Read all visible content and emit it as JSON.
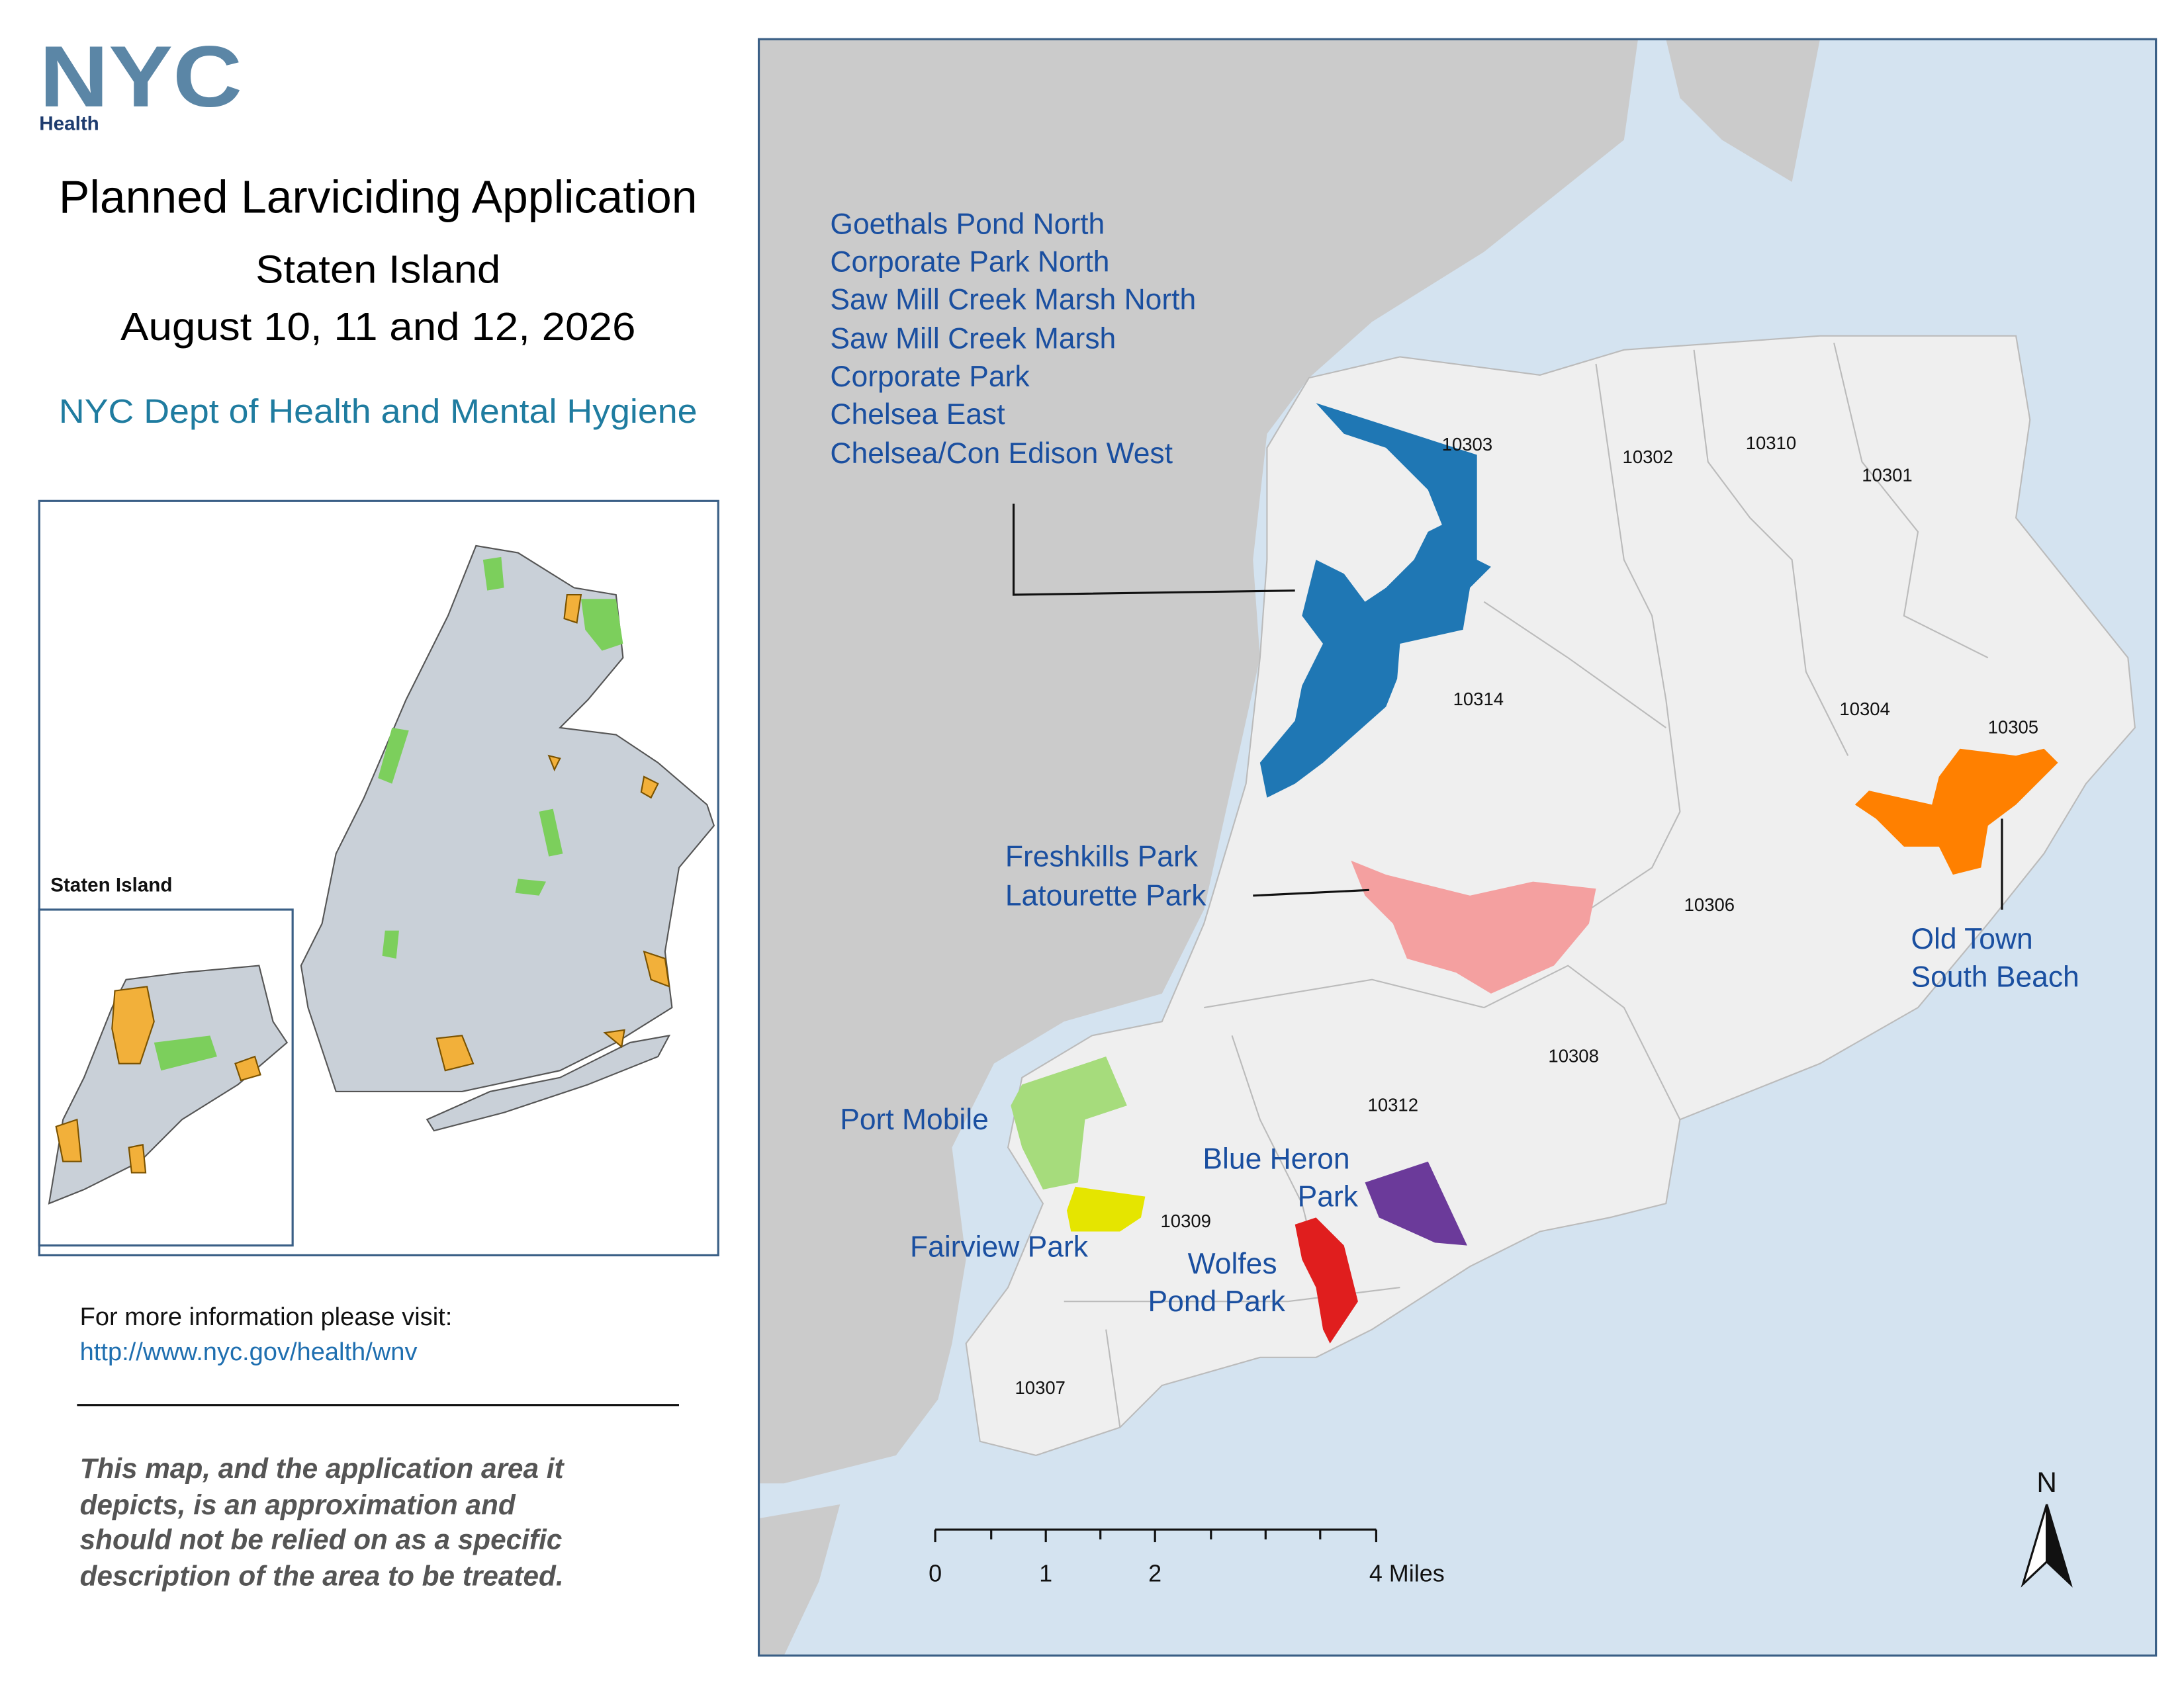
{
  "header": {
    "logo": "NYC",
    "logo_sub": "Health",
    "title": "Planned Larviciding Application",
    "subtitle": "Staten Island",
    "date": "August 10, 11 and 12, 2026",
    "agency": "NYC Dept of Health and Mental Hygiene"
  },
  "inset": {
    "label": "Staten Island"
  },
  "info": {
    "text": "For more information please visit:",
    "url": "http://www.nyc.gov/health/wnv"
  },
  "disclaimer": [
    "This map, and the application area it",
    "depicts, is an approximation and",
    "should not be relied on as a specific",
    "description of the area to be treated."
  ],
  "map": {
    "site_groups": [
      {
        "lines": [
          "Goethals Pond North",
          "Corporate Park North",
          "Saw Mill Creek Marsh North",
          "Saw Mill Creek Marsh",
          "Corporate Park",
          "Chelsea East",
          "Chelsea/Con Edison West"
        ]
      },
      {
        "lines": [
          "Freshkills Park",
          "Latourette Park"
        ]
      },
      {
        "lines": [
          "Old Town",
          "South Beach"
        ]
      },
      {
        "lines": [
          "Port Mobile"
        ]
      },
      {
        "lines": [
          "Blue Heron",
          "Park"
        ]
      },
      {
        "lines": [
          "Fairview Park"
        ]
      },
      {
        "lines": [
          "Wolfes",
          "Pond Park"
        ]
      }
    ],
    "zip_codes": [
      "10303",
      "10302",
      "10310",
      "10301",
      "10314",
      "10304",
      "10305",
      "10306",
      "10308",
      "10312",
      "10309",
      "10307"
    ],
    "scale_bar": [
      "0",
      "1",
      "2",
      "4 Miles"
    ],
    "north": "N"
  }
}
